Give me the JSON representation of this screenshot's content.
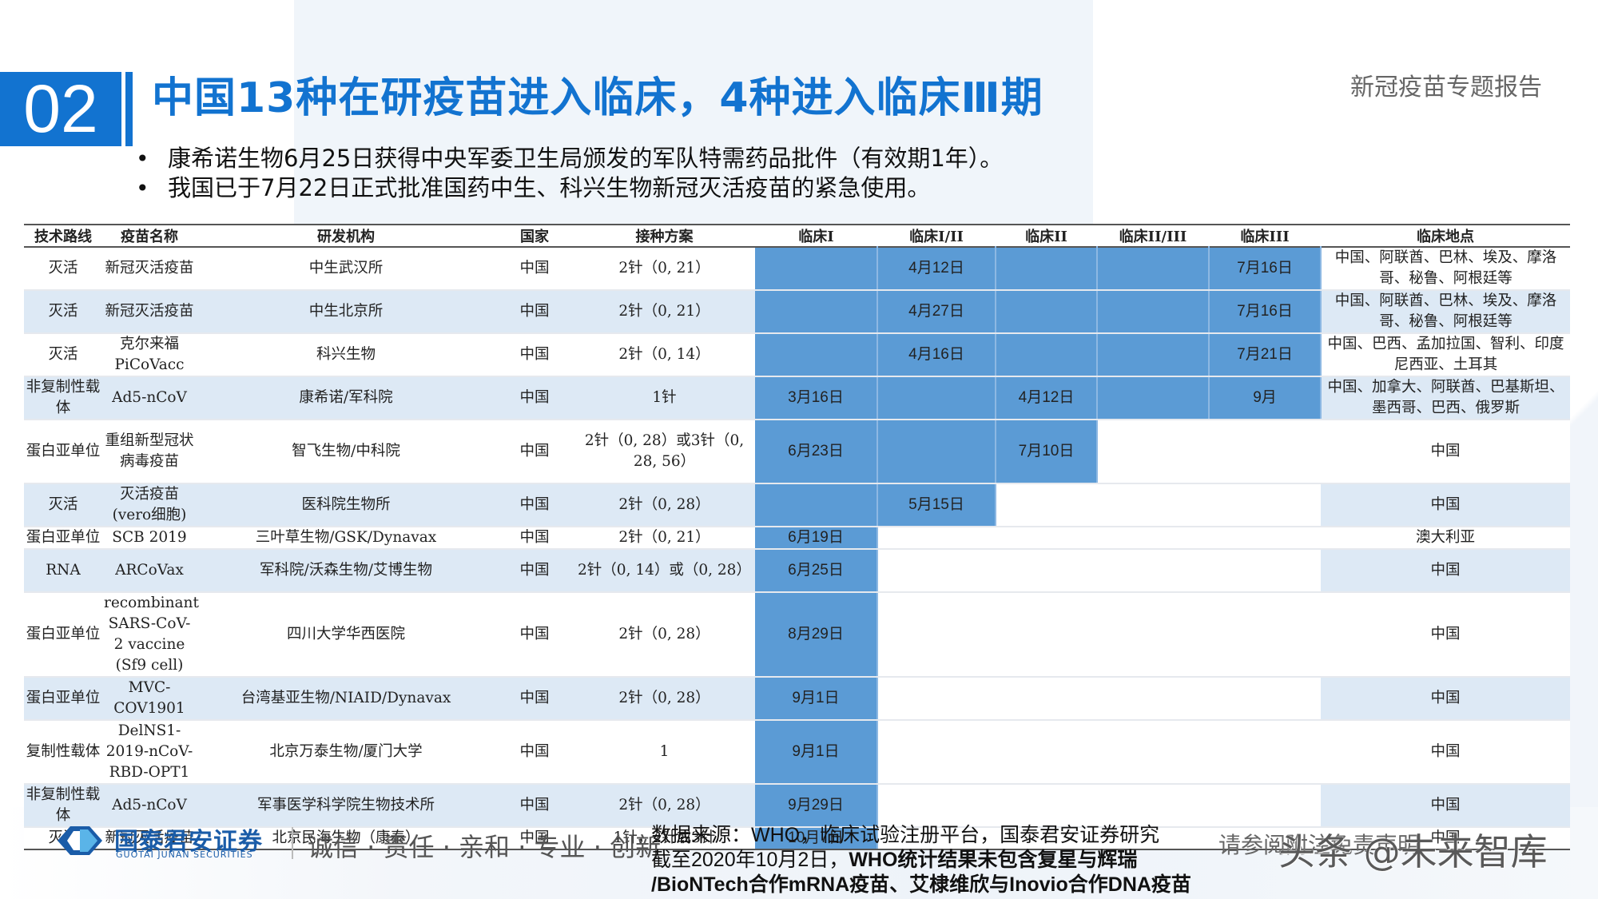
{
  "header": {
    "section_number": "02",
    "title": "中国13种在研疫苗进入临床，4种进入临床Ⅲ期",
    "report_tag": "新冠疫苗专题报告"
  },
  "bullets": [
    "康希诺生物6月25日获得中央军委卫生局颁发的军队特需药品批件（有效期1年）。",
    "我国已于7月22日正式批准国药中生、科兴生物新冠灭活疫苗的紧急使用。"
  ],
  "table": {
    "columns": [
      "技术路线",
      "疫苗名称",
      "研发机构",
      "国家",
      "接种方案",
      "临床I",
      "临床I/II",
      "临床II",
      "临床II/III",
      "临床III",
      "临床地点"
    ],
    "rows": [
      {
        "route": "灭活",
        "name": "新冠灭活疫苗",
        "org": "中生武汉所",
        "country": "中国",
        "scheme": "2针（0, 21）",
        "p1": "",
        "p12": "4月12日",
        "p2": "",
        "p23": "",
        "p3": "7月16日",
        "reach": 5,
        "location": "中国、阿联酋、巴林、埃及、摩洛哥、秘鲁、阿根廷等"
      },
      {
        "route": "灭活",
        "name": "新冠灭活疫苗",
        "org": "中生北京所",
        "country": "中国",
        "scheme": "2针（0, 21）",
        "p1": "",
        "p12": "4月27日",
        "p2": "",
        "p23": "",
        "p3": "7月16日",
        "reach": 5,
        "location": "中国、阿联酋、巴林、埃及、摩洛哥、秘鲁、阿根廷等"
      },
      {
        "route": "灭活",
        "name": "克尔来福 PiCoVacc",
        "org": "科兴生物",
        "country": "中国",
        "scheme": "2针（0, 14）",
        "p1": "",
        "p12": "4月16日",
        "p2": "",
        "p23": "",
        "p3": "7月21日",
        "reach": 5,
        "location": "中国、巴西、孟加拉国、智利、印度尼西亚、土耳其"
      },
      {
        "route": "非复制性载体",
        "name": "Ad5-nCoV",
        "org": "康希诺/军科院",
        "country": "中国",
        "scheme": "1针",
        "p1": "3月16日",
        "p12": "",
        "p2": "4月12日",
        "p23": "",
        "p3": "9月",
        "reach": 5,
        "location": "中国、加拿大、阿联酋、巴基斯坦、墨西哥、巴西、俄罗斯"
      },
      {
        "route": "蛋白亚单位",
        "name": "重组新型冠状病毒疫苗",
        "org": "智飞生物/中科院",
        "country": "中国",
        "scheme": "2针（0, 28）或3针（0, 28, 56）",
        "p1": "6月23日",
        "p12": "",
        "p2": "7月10日",
        "p23": "",
        "p3": "",
        "reach": 3,
        "location": "中国"
      },
      {
        "route": "灭活",
        "name": "灭活疫苗(vero细胞)",
        "org": "医科院生物所",
        "country": "中国",
        "scheme": "2针（0, 28）",
        "p1": "",
        "p12": "5月15日",
        "p2": "",
        "p23": "",
        "p3": "",
        "reach": 2,
        "location": "中国"
      },
      {
        "route": "蛋白亚单位",
        "name": "SCB 2019",
        "org": "三叶草生物/GSK/Dynavax",
        "country": "中国",
        "scheme": "2针（0, 21）",
        "p1": "6月19日",
        "p12": "",
        "p2": "",
        "p23": "",
        "p3": "",
        "reach": 1,
        "location": "澳大利亚"
      },
      {
        "route": "RNA",
        "name": "ARCoVax",
        "org": "军科院/沃森生物/艾博生物",
        "country": "中国",
        "scheme": "2针（0, 14）或（0, 28）",
        "p1": "6月25日",
        "p12": "",
        "p2": "",
        "p23": "",
        "p3": "",
        "reach": 1,
        "location": "中国"
      },
      {
        "route": "蛋白亚单位",
        "name": "recombinant SARS-CoV-2 vaccine (Sf9 cell)",
        "org": "四川大学华西医院",
        "country": "中国",
        "scheme": "2针（0, 28）",
        "p1": "8月29日",
        "p12": "",
        "p2": "",
        "p23": "",
        "p3": "",
        "reach": 1,
        "location": "中国"
      },
      {
        "route": "蛋白亚单位",
        "name": "MVC-COV1901",
        "org": "台湾基亚生物/NIAID/Dynavax",
        "country": "中国",
        "scheme": "2针（0, 28）",
        "p1": "9月1日",
        "p12": "",
        "p2": "",
        "p23": "",
        "p3": "",
        "reach": 1,
        "location": "中国"
      },
      {
        "route": "复制性载体",
        "name": "DelNS1-2019-nCoV-RBD-OPT1",
        "org": "北京万泰生物/厦门大学",
        "country": "中国",
        "scheme": "1",
        "p1": "9月1日",
        "p12": "",
        "p2": "",
        "p23": "",
        "p3": "",
        "reach": 1,
        "location": "中国"
      },
      {
        "route": "非复制性载体",
        "name": "Ad5-nCoV",
        "org": "军事医学科学院生物技术所",
        "country": "中国",
        "scheme": "2针（0, 28）",
        "p1": "9月29日",
        "p12": "",
        "p2": "",
        "p23": "",
        "p3": "",
        "reach": 1,
        "location": "中国"
      },
      {
        "route": "灭活",
        "name": "新冠灭活疫苗",
        "org": "北京民海生物（康泰）",
        "country": "中国",
        "scheme": "1针，2针或3针",
        "p1": "10月7日",
        "p12": "",
        "p2": "",
        "p23": "",
        "p3": "",
        "reach": 1,
        "location": "中国"
      }
    ]
  },
  "footer": {
    "logo_cn": "国泰君安证券",
    "logo_en": "GUOTAI JUNAN SECURITIES",
    "slogan": "诚信 · 责任 · 亲和 · 专业 · 创新",
    "source_line1": "数据来源：WHO，临床试验注册平台，国泰君安证券研究",
    "source_line2_plain": "截至2020年10月2日，",
    "source_line2_bold": "WHO统计结果未包含复星与辉瑞",
    "source_line3_bold": "/BioNTech合作mRNA疫苗、艾棣维欣与Inovio合作DNA疫苗",
    "disclaimer": "请参阅附注免责声明",
    "watermark": "头条 @未来智库"
  },
  "colors": {
    "accent": "#1273d0",
    "phase_bar": "#5b9bd5",
    "row_alt": "#dde9f5"
  }
}
